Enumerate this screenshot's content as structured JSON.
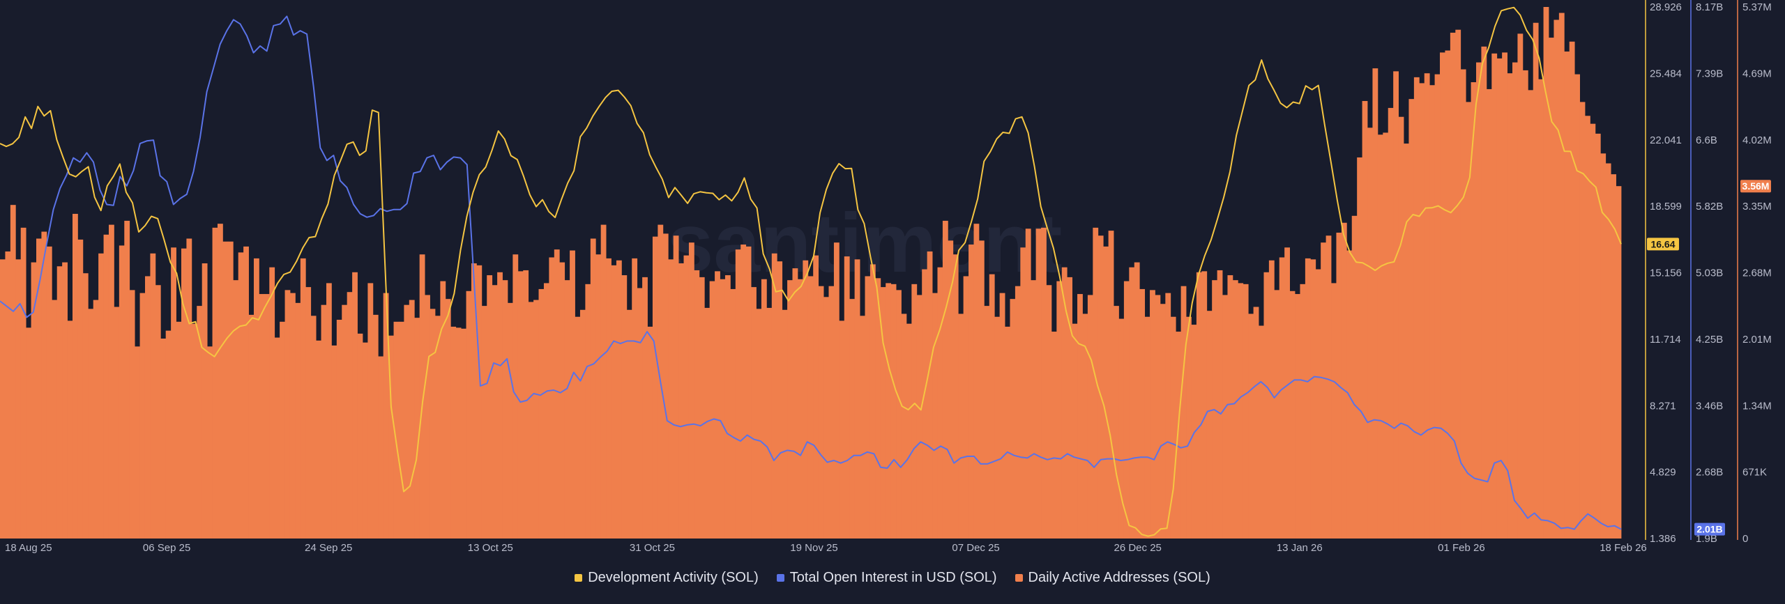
{
  "watermark": "santiment",
  "legend": [
    {
      "label": "Development Activity (SOL)",
      "color": "#f5c542"
    },
    {
      "label": "Total Open Interest in USD (SOL)",
      "color": "#5a73e8"
    },
    {
      "label": "Daily Active Addresses (SOL)",
      "color": "#f07f4c"
    }
  ],
  "chart_data": {
    "type": "line",
    "title": "",
    "x_tick_labels": [
      "18 Aug 25",
      "06 Sep 25",
      "24 Sep 25",
      "13 Oct 25",
      "31 Oct 25",
      "19 Nov 25",
      "07 Dec 25",
      "26 Dec 25",
      "13 Jan 26",
      "01 Feb 26",
      "18 Feb 26"
    ],
    "axes": {
      "dev_activity": {
        "color": "#f5c542",
        "ticks": [
          "28.926",
          "25.484",
          "22.041",
          "18.599",
          "15.156",
          "11.714",
          "8.271",
          "4.829",
          "1.386"
        ],
        "range": [
          1.386,
          28.926
        ],
        "current_label": "16.64",
        "current_value": 16.64
      },
      "open_interest": {
        "color": "#5a73e8",
        "ticks": [
          "8.17B",
          "7.39B",
          "6.6B",
          "5.82B",
          "5.03B",
          "4.25B",
          "3.46B",
          "2.68B",
          "1.9B"
        ],
        "range": [
          1.9,
          8.17
        ],
        "current_label": "2.01B",
        "current_value": 2.01
      },
      "daily_active": {
        "color": "#f07f4c",
        "ticks": [
          "5.37M",
          "4.69M",
          "4.02M",
          "3.35M",
          "2.68M",
          "2.01M",
          "1.34M",
          "671K",
          "0"
        ],
        "range": [
          0,
          5.37
        ],
        "current_label": "3.56M",
        "current_value": 3.56
      }
    },
    "series": [
      {
        "name": "Daily Active Addresses (SOL)",
        "axis": "daily_active",
        "unit": "M",
        "values": [
          2.82,
          2.9,
          3.37,
          2.82,
          3.14,
          2.13,
          2.79,
          3.03,
          3.1,
          2.95,
          2.41,
          2.75,
          2.79,
          2.2,
          3.28,
          3.02,
          2.68,
          2.32,
          2.41,
          2.88,
          3.07,
          3.17,
          2.34,
          2.96,
          3.21,
          2.51,
          1.94,
          2.48,
          2.65,
          2.88,
          2.56,
          2.02,
          2.1,
          2.94,
          2.19,
          2.93,
          3.03,
          2.17,
          2.35,
          2.78,
          1.94,
          3.14,
          3.18,
          3.0,
          3.0,
          2.61,
          2.89,
          2.95,
          2.26,
          2.83,
          2.47,
          2.47,
          2.74,
          2.03,
          2.19,
          2.51,
          2.48,
          2.38,
          2.83,
          2.54,
          2.25,
          2.0,
          2.36,
          2.58,
          1.95,
          2.21,
          2.36,
          2.49,
          2.69,
          2.07,
          1.98,
          2.58,
          2.26,
          1.84,
          2.48,
          2.05,
          2.19,
          2.19,
          2.36,
          2.41,
          2.23,
          2.87,
          2.46,
          2.32,
          2.25,
          2.6,
          2.42,
          2.14,
          2.13,
          2.12,
          2.5,
          2.78,
          2.76,
          2.35,
          2.66,
          2.56,
          2.69,
          2.61,
          2.38,
          2.87,
          2.7,
          2.71,
          2.39,
          2.41,
          2.52,
          2.58,
          2.84,
          2.92,
          2.79,
          2.61,
          2.91,
          2.24,
          2.31,
          2.57,
          3.03,
          2.87,
          3.17,
          2.83,
          2.76,
          2.81,
          2.66,
          2.31,
          2.83,
          2.53,
          2.64,
          2.14,
          3.05,
          3.17,
          3.08,
          2.82,
          3.06,
          2.78,
          2.86,
          2.99,
          2.71,
          2.64,
          2.33,
          2.6,
          2.7,
          2.62,
          2.66,
          2.52,
          2.92,
          2.97,
          2.95,
          2.54,
          2.32,
          2.62,
          2.33,
          2.88,
          2.8,
          2.31,
          2.61,
          2.73,
          2.62,
          2.81,
          2.65,
          2.86,
          2.55,
          2.44,
          2.55,
          2.99,
          2.2,
          2.85,
          2.42,
          2.82,
          2.25,
          2.65,
          2.77,
          2.63,
          2.54,
          2.58,
          2.57,
          2.51,
          2.27,
          2.17,
          2.57,
          2.46,
          2.72,
          2.9,
          2.48,
          2.74,
          3.21,
          3.01,
          2.87,
          2.27,
          2.65,
          2.97,
          3.18,
          3.01,
          2.35,
          2.67,
          2.24,
          2.48,
          2.14,
          2.42,
          2.55,
          2.94,
          3.13,
          2.61,
          3.13,
          3.14,
          2.56,
          2.09,
          2.6,
          2.74,
          2.64,
          2.17,
          2.47,
          2.27,
          2.46,
          3.14,
          3.06,
          2.95,
          3.11,
          2.35,
          2.22,
          2.6,
          2.74,
          2.79,
          2.52,
          2.24,
          2.51,
          2.46,
          2.37,
          2.48,
          2.24,
          2.09,
          2.55,
          2.24,
          2.16,
          2.69,
          2.7,
          2.3,
          2.61,
          2.71,
          2.46,
          2.66,
          2.61,
          2.58,
          2.57,
          2.27,
          2.34,
          2.15,
          2.69,
          2.81,
          2.51,
          2.84,
          2.94,
          2.5,
          2.47,
          2.57,
          2.83,
          2.82,
          2.72,
          2.99,
          3.06,
          2.58,
          3.09,
          3.19,
          2.91,
          3.26,
          3.85,
          4.42,
          4.15,
          4.75,
          4.08,
          4.1,
          4.35,
          4.72,
          4.26,
          3.99,
          4.44,
          4.66,
          4.6,
          4.7,
          4.58,
          4.69,
          4.91,
          4.93,
          5.11,
          5.14,
          4.74,
          4.41,
          4.61,
          4.81,
          4.97,
          4.54,
          4.9,
          4.85,
          4.91,
          4.7,
          4.81,
          5.1,
          4.73,
          4.53,
          5.21,
          4.64,
          5.37,
          5.06,
          5.24,
          5.31,
          4.92,
          5.02,
          4.69,
          4.41,
          4.27,
          4.19,
          4.09,
          3.89,
          3.79,
          3.68,
          3.56
        ]
      },
      {
        "name": "Total Open Interest in USD (SOL)",
        "axis": "open_interest",
        "unit": "B",
        "values": [
          4.7,
          4.64,
          4.58,
          4.67,
          4.51,
          4.57,
          4.95,
          5.38,
          5.78,
          6.03,
          6.19,
          6.39,
          6.34,
          6.45,
          6.34,
          6.01,
          5.84,
          5.83,
          6.17,
          6.06,
          6.24,
          6.56,
          6.59,
          6.6,
          6.18,
          6.11,
          5.84,
          5.91,
          5.96,
          6.23,
          6.63,
          7.17,
          7.45,
          7.73,
          7.89,
          8.02,
          7.97,
          7.83,
          7.63,
          7.71,
          7.65,
          7.95,
          7.97,
          8.06,
          7.84,
          7.89,
          7.85,
          7.23,
          6.51,
          6.36,
          6.42,
          6.12,
          6.04,
          5.84,
          5.73,
          5.69,
          5.71,
          5.79,
          5.76,
          5.78,
          5.78,
          5.85,
          6.21,
          6.23,
          6.39,
          6.42,
          6.25,
          6.34,
          6.4,
          6.39,
          6.31,
          5.02,
          3.7,
          3.73,
          3.97,
          3.94,
          4.02,
          3.63,
          3.51,
          3.53,
          3.61,
          3.59,
          3.64,
          3.65,
          3.62,
          3.67,
          3.86,
          3.76,
          3.93,
          3.96,
          4.04,
          4.11,
          4.23,
          4.2,
          4.23,
          4.23,
          4.21,
          4.34,
          4.23,
          3.75,
          3.29,
          3.24,
          3.22,
          3.24,
          3.25,
          3.23,
          3.28,
          3.31,
          3.29,
          3.14,
          3.09,
          3.05,
          3.12,
          3.07,
          3.05,
          2.98,
          2.82,
          2.91,
          2.94,
          2.93,
          2.88,
          3.04,
          3.0,
          2.89,
          2.8,
          2.82,
          2.79,
          2.82,
          2.88,
          2.88,
          2.92,
          2.9,
          2.74,
          2.73,
          2.83,
          2.74,
          2.83,
          2.96,
          3.04,
          3.0,
          2.94,
          2.99,
          2.95,
          2.79,
          2.85,
          2.87,
          2.87,
          2.78,
          2.78,
          2.81,
          2.84,
          2.92,
          2.88,
          2.86,
          2.85,
          2.9,
          2.86,
          2.83,
          2.85,
          2.84,
          2.9,
          2.86,
          2.84,
          2.82,
          2.74,
          2.83,
          2.84,
          2.84,
          2.82,
          2.83,
          2.85,
          2.86,
          2.86,
          2.83,
          2.99,
          3.04,
          3.01,
          2.97,
          2.99,
          3.15,
          3.24,
          3.4,
          3.42,
          3.37,
          3.48,
          3.49,
          3.57,
          3.62,
          3.69,
          3.75,
          3.68,
          3.56,
          3.65,
          3.71,
          3.77,
          3.77,
          3.75,
          3.81,
          3.8,
          3.78,
          3.75,
          3.68,
          3.62,
          3.48,
          3.4,
          3.27,
          3.3,
          3.29,
          3.25,
          3.2,
          3.26,
          3.23,
          3.16,
          3.12,
          3.18,
          3.21,
          3.2,
          3.14,
          3.05,
          2.79,
          2.67,
          2.61,
          2.59,
          2.57,
          2.79,
          2.82,
          2.7,
          2.35,
          2.25,
          2.14,
          2.2,
          2.12,
          2.11,
          2.08,
          2.02,
          2.03,
          2.01,
          2.11,
          2.19,
          2.14,
          2.08,
          2.04,
          2.05,
          2.01
        ]
      },
      {
        "name": "Development Activity (SOL)",
        "axis": "dev_activity",
        "unit": "",
        "values": [
          21.85,
          21.7,
          21.84,
          22.17,
          23.23,
          22.63,
          23.77,
          23.28,
          23.55,
          22.05,
          21.13,
          20.27,
          20.13,
          20.41,
          20.65,
          19.07,
          18.38,
          19.66,
          20.16,
          20.79,
          19.33,
          18.78,
          17.27,
          17.6,
          18.08,
          17.96,
          16.88,
          15.71,
          15.13,
          13.54,
          12.52,
          12.62,
          11.29,
          11.03,
          10.81,
          11.3,
          11.77,
          12.14,
          12.38,
          12.45,
          12.82,
          12.72,
          13.38,
          13.96,
          14.61,
          15.07,
          15.19,
          15.74,
          16.44,
          16.98,
          17.03,
          17.96,
          18.72,
          20.2,
          20.98,
          21.81,
          21.93,
          21.24,
          21.47,
          23.58,
          23.46,
          15.89,
          8.22,
          5.95,
          3.82,
          4.1,
          5.47,
          8.47,
          10.82,
          11.03,
          12.24,
          12.93,
          14.08,
          16.31,
          18.07,
          19.33,
          20.24,
          20.63,
          21.5,
          22.5,
          22.08,
          21.22,
          21.02,
          20.16,
          19.2,
          18.58,
          18.94,
          18.33,
          18.02,
          18.95,
          19.8,
          20.44,
          22.2,
          22.65,
          23.28,
          23.78,
          24.24,
          24.56,
          24.61,
          24.25,
          23.81,
          22.89,
          22.41,
          21.27,
          20.61,
          20.0,
          19.05,
          19.57,
          19.17,
          18.75,
          19.25,
          19.35,
          19.3,
          19.27,
          18.94,
          19.18,
          18.88,
          19.33,
          20.07,
          18.97,
          18.51,
          16.14,
          15.34,
          14.17,
          14.25,
          13.7,
          14.15,
          14.45,
          15.14,
          16.03,
          18.26,
          19.47,
          20.31,
          20.81,
          20.55,
          20.56,
          18.42,
          17.7,
          15.99,
          14.39,
          11.53,
          10.15,
          9.06,
          8.24,
          8.06,
          8.39,
          8.05,
          9.63,
          11.29,
          12.22,
          13.37,
          14.68,
          16.32,
          16.72,
          17.81,
          18.99,
          20.93,
          21.43,
          22.09,
          22.43,
          22.38,
          23.13,
          23.23,
          22.4,
          20.64,
          18.59,
          17.49,
          16.44,
          14.96,
          13.18,
          11.89,
          11.48,
          11.35,
          10.63,
          9.3,
          8.28,
          6.73,
          4.68,
          3.2,
          2.06,
          1.94,
          1.6,
          1.51,
          1.58,
          1.88,
          1.92,
          3.96,
          7.96,
          11.44,
          13.59,
          15.05,
          16.05,
          16.87,
          17.93,
          19.07,
          20.4,
          22.28,
          23.57,
          24.86,
          25.15,
          26.18,
          25.2,
          24.6,
          23.94,
          23.71,
          24.0,
          23.92,
          24.84,
          24.64,
          24.86,
          22.82,
          20.87,
          18.91,
          17.15,
          16.21,
          15.71,
          15.67,
          15.49,
          15.28,
          15.51,
          15.65,
          15.72,
          16.57,
          17.79,
          18.17,
          18.08,
          18.51,
          18.52,
          18.62,
          18.42,
          18.27,
          18.63,
          19.07,
          20.1,
          23.89,
          25.99,
          26.81,
          27.93,
          28.73,
          28.83,
          28.9,
          28.5,
          27.72,
          27.23,
          26.28,
          24.57,
          22.98,
          22.55,
          21.45,
          21.44,
          20.44,
          20.29,
          19.9,
          19.59,
          18.28,
          17.92,
          17.41,
          16.64
        ]
      }
    ]
  }
}
